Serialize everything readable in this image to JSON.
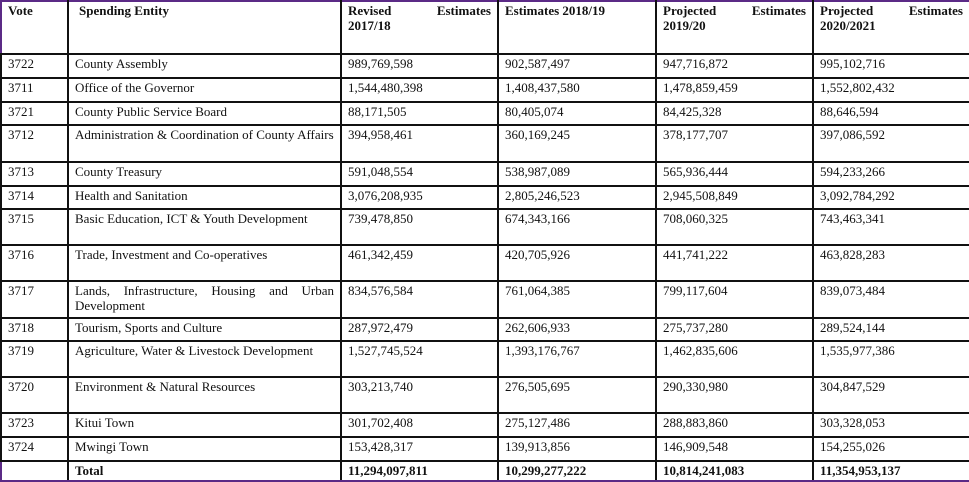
{
  "table": {
    "headers": {
      "vote": "Vote",
      "entity": "Spending Entity",
      "revised_2017_18": "Revised Estimates 2017/18",
      "estimates_2018_19": "Estimates 2018/19",
      "projected_2019_20": "Projected Estimates 2019/20",
      "projected_2020_21": "Projected Estimates 2020/2021"
    },
    "rows": [
      {
        "vote": "3722",
        "entity": "County Assembly",
        "rev": "989,769,598",
        "est": "902,587,497",
        "p19": "947,716,872",
        "p20": "995,102,716"
      },
      {
        "vote": "3711",
        "entity": "Office of the Governor",
        "rev": "1,544,480,398",
        "est": "1,408,437,580",
        "p19": "1,478,859,459",
        "p20": "1,552,802,432"
      },
      {
        "vote": "3721",
        "entity": "County Public Service Board",
        "rev": "88,171,505",
        "est": "80,405,074",
        "p19": "84,425,328",
        "p20": "88,646,594"
      },
      {
        "vote": "3712",
        "entity": "Administration & Coordination of County Affairs",
        "rev": "394,958,461",
        "est": "360,169,245",
        "p19": "378,177,707",
        "p20": "397,086,592"
      },
      {
        "vote": "3713",
        "entity": "County Treasury",
        "rev": "591,048,554",
        "est": "538,987,089",
        "p19": "565,936,444",
        "p20": "594,233,266"
      },
      {
        "vote": "3714",
        "entity": "Health and Sanitation",
        "rev": "3,076,208,935",
        "est": "2,805,246,523",
        "p19": "2,945,508,849",
        "p20": "3,092,784,292"
      },
      {
        "vote": "3715",
        "entity": "Basic Education, ICT & Youth Development",
        "rev": "739,478,850",
        "est": "674,343,166",
        "p19": "708,060,325",
        "p20": "743,463,341"
      },
      {
        "vote": "3716",
        "entity": "Trade, Investment and Co-operatives",
        "rev": "461,342,459",
        "est": "420,705,926",
        "p19": "441,741,222",
        "p20": "463,828,283"
      },
      {
        "vote": "3717",
        "entity": "Lands, Infrastructure, Housing and Urban Development",
        "rev": "834,576,584",
        "est": "761,064,385",
        "p19": "799,117,604",
        "p20": "839,073,484"
      },
      {
        "vote": "3718",
        "entity": "Tourism, Sports and Culture",
        "rev": "287,972,479",
        "est": "262,606,933",
        "p19": "275,737,280",
        "p20": "289,524,144"
      },
      {
        "vote": "3719",
        "entity": "Agriculture, Water & Livestock Development",
        "rev": "1,527,745,524",
        "est": "1,393,176,767",
        "p19": "1,462,835,606",
        "p20": "1,535,977,386"
      },
      {
        "vote": "3720",
        "entity": "Environment & Natural Resources",
        "rev": "303,213,740",
        "est": "276,505,695",
        "p19": "290,330,980",
        "p20": "304,847,529"
      },
      {
        "vote": "3723",
        "entity": "Kitui Town",
        "rev": "301,702,408",
        "est": "275,127,486",
        "p19": "288,883,860",
        "p20": "303,328,053"
      },
      {
        "vote": "3724",
        "entity": "Mwingi Town",
        "rev": "153,428,317",
        "est": "139,913,856",
        "p19": "146,909,548",
        "p20": "154,255,026"
      }
    ],
    "total": {
      "vote": "",
      "entity": "Total",
      "rev": "11,294,097,811",
      "est": "10,299,277,222",
      "p19": "10,814,241,083",
      "p20": "11,354,953,137"
    }
  }
}
